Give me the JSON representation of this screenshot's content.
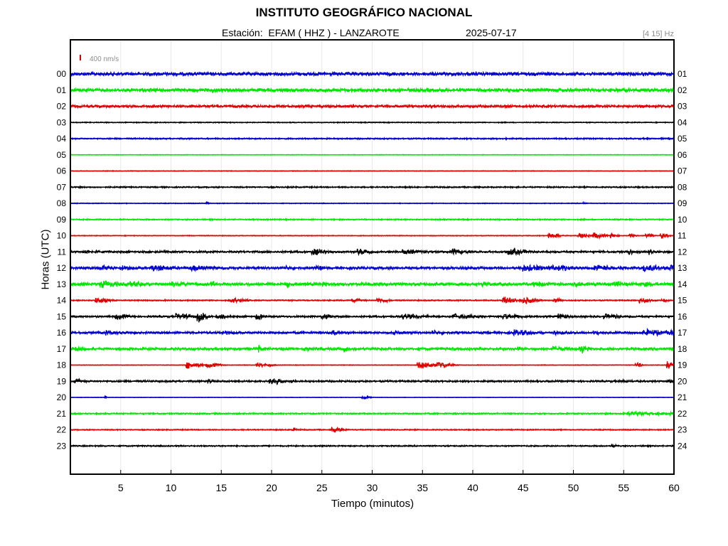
{
  "chart_data": {
    "type": "line",
    "title": "INSTITUTO GEOGRÁFICO NACIONAL",
    "station_label": "Estación:  EFAM ( HHZ ) - LANZAROTE",
    "date": "2025-07-17",
    "band": "[4 15] Hz",
    "scale_label": "400 nm/s",
    "xlabel": "Tiempo (minutos)",
    "ylabel": "Horas (UTC)",
    "xlim": [
      0,
      60
    ],
    "x_ticks": [
      "5",
      "10",
      "15",
      "20",
      "25",
      "30",
      "35",
      "40",
      "45",
      "50",
      "55",
      "60"
    ],
    "left_labels": [
      "00",
      "01",
      "02",
      "03",
      "04",
      "05",
      "06",
      "07",
      "08",
      "09",
      "10",
      "11",
      "12",
      "13",
      "14",
      "15",
      "16",
      "17",
      "18",
      "19",
      "20",
      "21",
      "22",
      "23"
    ],
    "right_labels": [
      "01",
      "02",
      "03",
      "04",
      "05",
      "06",
      "07",
      "08",
      "09",
      "10",
      "11",
      "12",
      "13",
      "14",
      "15",
      "16",
      "17",
      "18",
      "19",
      "20",
      "21",
      "22",
      "23",
      "24"
    ],
    "colors": [
      "#0000cc",
      "#00e600",
      "#dd0000",
      "#000000"
    ],
    "grid": true,
    "series": [
      {
        "hour": 0,
        "noise": 2.2,
        "events": []
      },
      {
        "hour": 1,
        "noise": 2.2,
        "events": [
          [
            14.1,
            5,
            0.3
          ]
        ]
      },
      {
        "hour": 2,
        "noise": 1.6,
        "events": []
      },
      {
        "hour": 3,
        "noise": 0.6,
        "events": []
      },
      {
        "hour": 4,
        "noise": 0.9,
        "events": []
      },
      {
        "hour": 5,
        "noise": 0.4,
        "events": []
      },
      {
        "hour": 6,
        "noise": 0.4,
        "events": []
      },
      {
        "hour": 7,
        "noise": 0.9,
        "events": []
      },
      {
        "hour": 8,
        "noise": 0.5,
        "events": [
          [
            13.5,
            2,
            0.2
          ],
          [
            51.0,
            2,
            0.2
          ]
        ]
      },
      {
        "hour": 9,
        "noise": 0.8,
        "events": [
          [
            55.5,
            2,
            0.2
          ]
        ]
      },
      {
        "hour": 10,
        "noise": 0.5,
        "events": [
          [
            47.5,
            5,
            0.6
          ],
          [
            50.5,
            5,
            0.6
          ],
          [
            52.0,
            5,
            0.6
          ],
          [
            53.7,
            5,
            0.4
          ],
          [
            55.5,
            4,
            0.4
          ],
          [
            57.2,
            4,
            0.4
          ],
          [
            58.7,
            5,
            0.4
          ]
        ]
      },
      {
        "hour": 11,
        "noise": 1.3,
        "events": [
          [
            1.5,
            4,
            0.8
          ],
          [
            24.0,
            6,
            1.0
          ],
          [
            28.5,
            6,
            1.0
          ],
          [
            33.0,
            5,
            1.5
          ],
          [
            38.0,
            5,
            1.0
          ],
          [
            43.5,
            6,
            1.2
          ],
          [
            55.5,
            5,
            0.3
          ],
          [
            57.5,
            5,
            0.3
          ]
        ]
      },
      {
        "hour": 12,
        "noise": 1.7,
        "events": [
          [
            3.0,
            5,
            1.0
          ],
          [
            5.0,
            5,
            0.8
          ],
          [
            8.0,
            6,
            1.5
          ],
          [
            12.0,
            5,
            1.5
          ],
          [
            21.5,
            4,
            0.5
          ],
          [
            24.5,
            5,
            0.5
          ],
          [
            45.0,
            6,
            2.0
          ],
          [
            48.0,
            5,
            1.5
          ],
          [
            52.0,
            5,
            1.5
          ],
          [
            57.0,
            6,
            1.5
          ],
          [
            59.5,
            6,
            0.5
          ]
        ]
      },
      {
        "hour": 13,
        "noise": 2.0,
        "events": [
          [
            3.0,
            6,
            1.5
          ],
          [
            6.0,
            5,
            1.2
          ],
          [
            10.0,
            5,
            1.2
          ],
          [
            14.0,
            5,
            1.0
          ],
          [
            21.5,
            5,
            0.6
          ],
          [
            25.0,
            5,
            0.5
          ],
          [
            41.0,
            5,
            0.6
          ],
          [
            46.0,
            5,
            1.0
          ],
          [
            50.0,
            5,
            1.0
          ],
          [
            54.0,
            5,
            1.0
          ],
          [
            57.0,
            5,
            1.0
          ]
        ]
      },
      {
        "hour": 14,
        "noise": 0.8,
        "events": [
          [
            2.5,
            5,
            0.8
          ],
          [
            16.0,
            5,
            0.8
          ],
          [
            28.0,
            4,
            0.6
          ],
          [
            30.5,
            5,
            0.6
          ],
          [
            43.0,
            6,
            1.2
          ],
          [
            45.0,
            6,
            0.8
          ],
          [
            48.0,
            4,
            0.5
          ],
          [
            56.5,
            5,
            0.8
          ],
          [
            58.8,
            5,
            0.3
          ]
        ]
      },
      {
        "hour": 15,
        "noise": 1.2,
        "events": [
          [
            4.5,
            5,
            0.8
          ],
          [
            10.5,
            5,
            1.2
          ],
          [
            12.6,
            10,
            0.6
          ],
          [
            14.5,
            5,
            0.6
          ],
          [
            18.5,
            5,
            0.6
          ],
          [
            25.0,
            5,
            0.6
          ],
          [
            33.0,
            5,
            1.5
          ],
          [
            38.0,
            5,
            1.5
          ],
          [
            43.0,
            5,
            1.2
          ],
          [
            48.5,
            6,
            0.6
          ],
          [
            53.0,
            5,
            1.0
          ]
        ]
      },
      {
        "hour": 16,
        "noise": 1.5,
        "events": [
          [
            3.5,
            4,
            0.8
          ],
          [
            15.0,
            4,
            1.0
          ],
          [
            26.0,
            6,
            0.3
          ],
          [
            32.0,
            4,
            0.8
          ],
          [
            36.0,
            4,
            0.8
          ],
          [
            44.0,
            5,
            1.5
          ],
          [
            48.0,
            4,
            1.0
          ],
          [
            52.0,
            4,
            1.0
          ],
          [
            57.0,
            6,
            1.5
          ],
          [
            59.5,
            5,
            0.5
          ]
        ]
      },
      {
        "hour": 17,
        "noise": 1.6,
        "events": [
          [
            0.5,
            5,
            0.5
          ],
          [
            18.7,
            7,
            0.2
          ],
          [
            23.0,
            4,
            1.0
          ],
          [
            27.2,
            7,
            0.2
          ],
          [
            44.5,
            6,
            0.3
          ],
          [
            48.0,
            5,
            1.0
          ],
          [
            50.6,
            8,
            0.6
          ]
        ]
      },
      {
        "hour": 18,
        "noise": 0.4,
        "events": [
          [
            11.5,
            6,
            0.8
          ],
          [
            13.5,
            5,
            0.8
          ],
          [
            18.5,
            4,
            0.8
          ],
          [
            34.5,
            7,
            0.8
          ],
          [
            36.5,
            5,
            0.8
          ],
          [
            56.2,
            6,
            0.3
          ],
          [
            59.3,
            7,
            0.4
          ]
        ]
      },
      {
        "hour": 19,
        "noise": 1.2,
        "events": [
          [
            0.5,
            5,
            0.4
          ],
          [
            13.7,
            5,
            0.3
          ],
          [
            19.8,
            8,
            0.6
          ],
          [
            22.0,
            4,
            0.3
          ],
          [
            55.0,
            3,
            0.8
          ],
          [
            59.5,
            4,
            0.3
          ]
        ]
      },
      {
        "hour": 20,
        "noise": 0.3,
        "events": [
          [
            3.4,
            4,
            0.1
          ],
          [
            29.0,
            3,
            0.5
          ]
        ]
      },
      {
        "hour": 21,
        "noise": 0.9,
        "events": [
          [
            55.0,
            3,
            6.0
          ]
        ]
      },
      {
        "hour": 22,
        "noise": 0.7,
        "events": [
          [
            22.0,
            3,
            0.5
          ],
          [
            26.0,
            4,
            0.8
          ]
        ]
      },
      {
        "hour": 23,
        "noise": 0.9,
        "events": [
          [
            53.8,
            4,
            0.3
          ]
        ]
      }
    ]
  }
}
